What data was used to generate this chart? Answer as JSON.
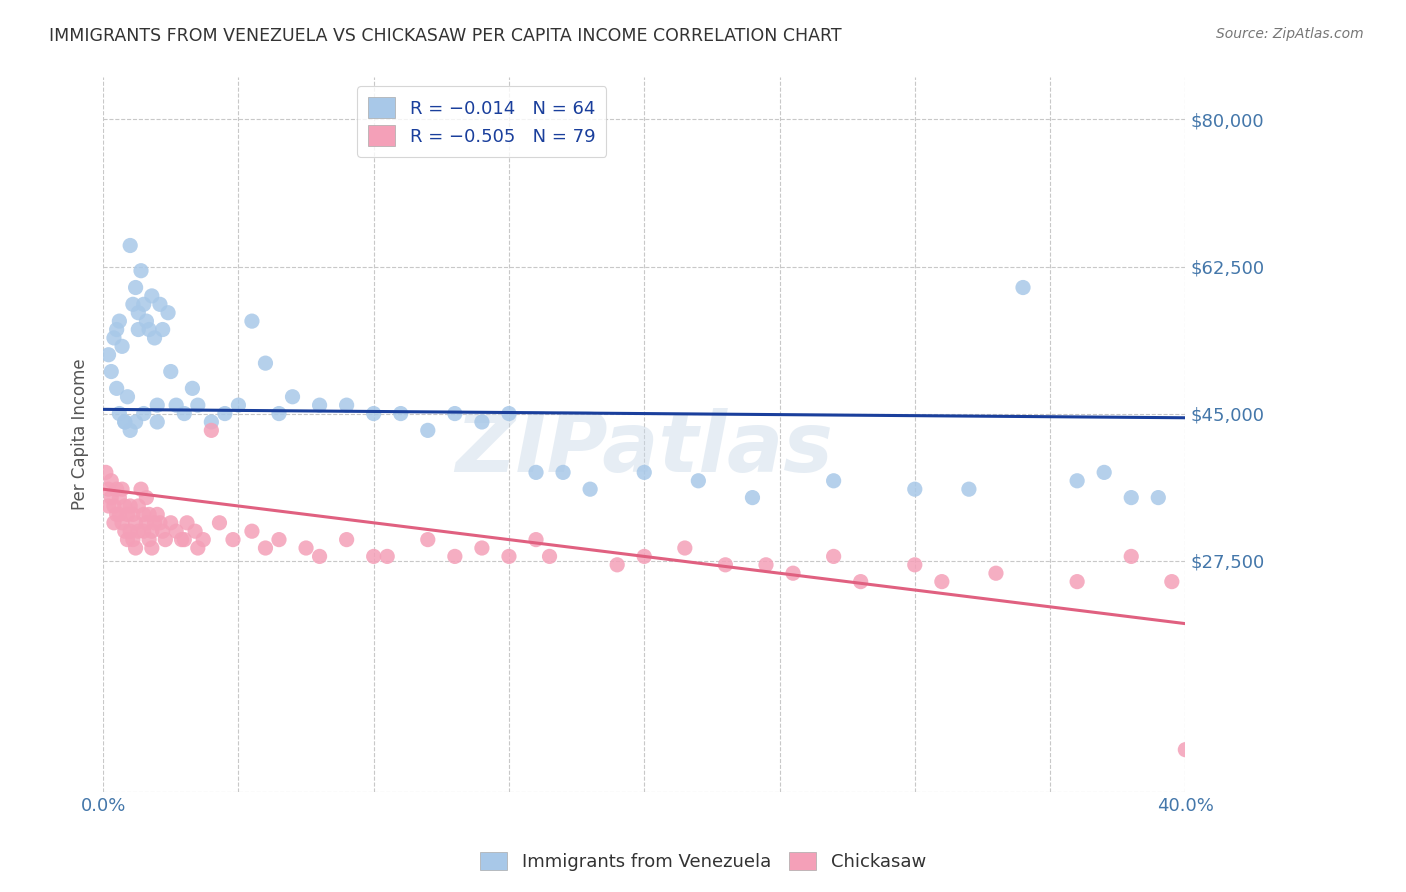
{
  "title": "IMMIGRANTS FROM VENEZUELA VS CHICKASAW PER CAPITA INCOME CORRELATION CHART",
  "source": "Source: ZipAtlas.com",
  "ylabel": "Per Capita Income",
  "xlim": [
    0.0,
    0.4
  ],
  "ylim": [
    0,
    85000
  ],
  "yticks": [
    0,
    27500,
    45000,
    62500,
    80000
  ],
  "ytick_labels": [
    "",
    "$27,500",
    "$45,000",
    "$62,500",
    "$80,000"
  ],
  "xticks": [
    0.0,
    0.05,
    0.1,
    0.15,
    0.2,
    0.25,
    0.3,
    0.35,
    0.4
  ],
  "blue_color": "#a8c8e8",
  "pink_color": "#f4a0b8",
  "blue_line_color": "#1a3f9c",
  "pink_line_color": "#e06080",
  "blue_line_y0": 45500,
  "blue_line_y1": 44500,
  "pink_line_y0": 36000,
  "pink_line_y1": 20000,
  "watermark": "ZIPatlas",
  "axis_label_color": "#4477aa",
  "background_color": "#ffffff",
  "grid_color": "#c8c8c8",
  "blue_scatter_x": [
    0.002,
    0.003,
    0.004,
    0.005,
    0.005,
    0.006,
    0.007,
    0.008,
    0.009,
    0.01,
    0.011,
    0.012,
    0.013,
    0.013,
    0.014,
    0.015,
    0.016,
    0.017,
    0.018,
    0.019,
    0.02,
    0.021,
    0.022,
    0.024,
    0.025,
    0.027,
    0.03,
    0.033,
    0.035,
    0.04,
    0.045,
    0.05,
    0.055,
    0.06,
    0.065,
    0.07,
    0.08,
    0.09,
    0.1,
    0.11,
    0.12,
    0.13,
    0.14,
    0.15,
    0.16,
    0.17,
    0.18,
    0.2,
    0.22,
    0.24,
    0.27,
    0.3,
    0.32,
    0.34,
    0.36,
    0.37,
    0.38,
    0.39,
    0.006,
    0.008,
    0.01,
    0.012,
    0.015,
    0.02
  ],
  "blue_scatter_y": [
    52000,
    50000,
    54000,
    55000,
    48000,
    56000,
    53000,
    44000,
    47000,
    65000,
    58000,
    60000,
    57000,
    55000,
    62000,
    58000,
    56000,
    55000,
    59000,
    54000,
    46000,
    58000,
    55000,
    57000,
    50000,
    46000,
    45000,
    48000,
    46000,
    44000,
    45000,
    46000,
    56000,
    51000,
    45000,
    47000,
    46000,
    46000,
    45000,
    45000,
    43000,
    45000,
    44000,
    45000,
    38000,
    38000,
    36000,
    38000,
    37000,
    35000,
    37000,
    36000,
    36000,
    60000,
    37000,
    38000,
    35000,
    35000,
    45000,
    44000,
    43000,
    44000,
    45000,
    44000
  ],
  "pink_scatter_x": [
    0.001,
    0.002,
    0.002,
    0.003,
    0.003,
    0.004,
    0.004,
    0.005,
    0.005,
    0.006,
    0.006,
    0.007,
    0.007,
    0.008,
    0.008,
    0.009,
    0.009,
    0.01,
    0.01,
    0.011,
    0.011,
    0.012,
    0.012,
    0.013,
    0.013,
    0.014,
    0.015,
    0.015,
    0.016,
    0.016,
    0.017,
    0.017,
    0.018,
    0.018,
    0.019,
    0.02,
    0.021,
    0.022,
    0.023,
    0.025,
    0.027,
    0.029,
    0.031,
    0.034,
    0.037,
    0.04,
    0.043,
    0.048,
    0.055,
    0.065,
    0.075,
    0.09,
    0.105,
    0.12,
    0.14,
    0.165,
    0.19,
    0.215,
    0.245,
    0.27,
    0.3,
    0.33,
    0.36,
    0.38,
    0.395,
    0.16,
    0.2,
    0.23,
    0.255,
    0.28,
    0.31,
    0.03,
    0.035,
    0.06,
    0.08,
    0.1,
    0.13,
    0.15,
    0.4
  ],
  "pink_scatter_y": [
    38000,
    36000,
    34000,
    37000,
    35000,
    34000,
    32000,
    36000,
    33000,
    35000,
    33000,
    36000,
    32000,
    34000,
    31000,
    33000,
    30000,
    34000,
    31000,
    33000,
    30000,
    32000,
    29000,
    34000,
    31000,
    36000,
    33000,
    31000,
    35000,
    32000,
    30000,
    33000,
    31000,
    29000,
    32000,
    33000,
    32000,
    31000,
    30000,
    32000,
    31000,
    30000,
    32000,
    31000,
    30000,
    43000,
    32000,
    30000,
    31000,
    30000,
    29000,
    30000,
    28000,
    30000,
    29000,
    28000,
    27000,
    29000,
    27000,
    28000,
    27000,
    26000,
    25000,
    28000,
    25000,
    30000,
    28000,
    27000,
    26000,
    25000,
    25000,
    30000,
    29000,
    29000,
    28000,
    28000,
    28000,
    28000,
    5000
  ]
}
